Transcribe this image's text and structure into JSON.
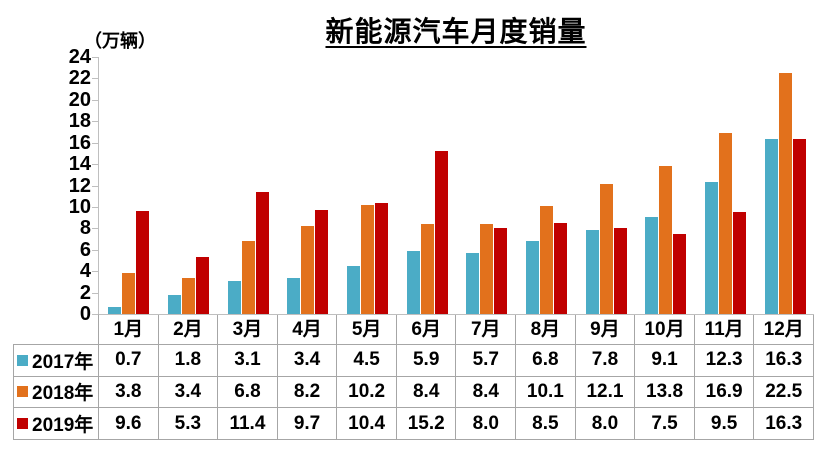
{
  "chart_data": {
    "type": "bar",
    "title": "新能源汽车月度销量",
    "y_unit_label": "（万辆）",
    "categories": [
      "1月",
      "2月",
      "3月",
      "4月",
      "5月",
      "6月",
      "7月",
      "8月",
      "9月",
      "10月",
      "11月",
      "12月"
    ],
    "series": [
      {
        "name": "2017年",
        "color": "#4BACC6",
        "values": [
          0.7,
          1.8,
          3.1,
          3.4,
          4.5,
          5.9,
          5.7,
          6.8,
          7.8,
          9.1,
          12.3,
          16.3
        ]
      },
      {
        "name": "2018年",
        "color": "#E2711C",
        "values": [
          3.8,
          3.4,
          6.8,
          8.2,
          10.2,
          8.4,
          8.4,
          10.1,
          12.1,
          13.8,
          16.9,
          22.5
        ]
      },
      {
        "name": "2019年",
        "color": "#C00000",
        "values": [
          9.6,
          5.3,
          11.4,
          9.7,
          10.4,
          15.2,
          8.0,
          8.5,
          8.0,
          7.5,
          9.5,
          16.3
        ]
      }
    ],
    "ylim": [
      0,
      24
    ],
    "y_tick_step": 2,
    "grid": false,
    "legend_position": "data-table-left",
    "value_decimals": 1
  }
}
